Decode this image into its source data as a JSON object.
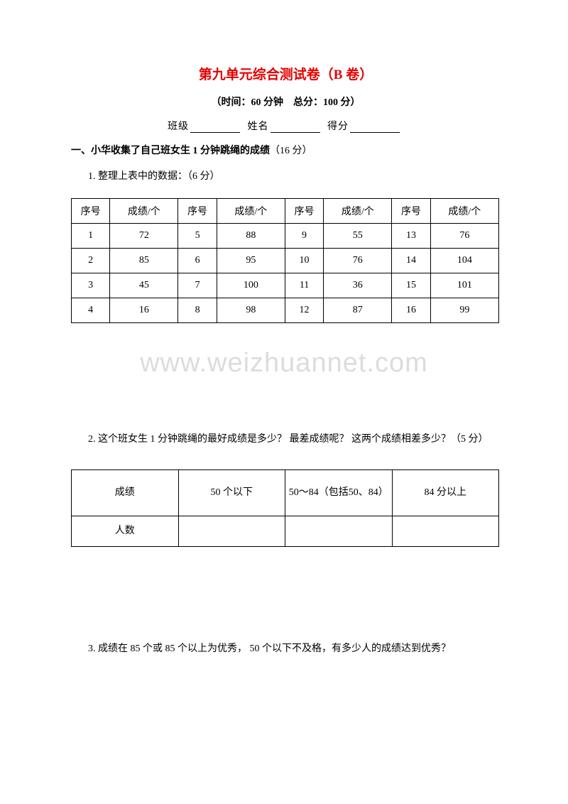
{
  "title": "第九单元综合测试卷（B 卷）",
  "subtitle": "（时间：60 分钟　总分：100 分）",
  "info": {
    "class_label": "班级",
    "name_label": "姓名",
    "score_label": "得分"
  },
  "section1": {
    "heading": "一、小华收集了自己班女生 1 分钟跳绳的成绩",
    "points": "（16 分）",
    "q1": "1. 整理上表中的数据：（6 分）"
  },
  "table1": {
    "headers": [
      "序号",
      "成绩/个",
      "序号",
      "成绩/个",
      "序号",
      "成绩/个",
      "序号",
      "成绩/个"
    ],
    "rows": [
      [
        "1",
        "72",
        "5",
        "88",
        "9",
        "55",
        "13",
        "76"
      ],
      [
        "2",
        "85",
        "6",
        "95",
        "10",
        "76",
        "14",
        "104"
      ],
      [
        "3",
        "45",
        "7",
        "100",
        "11",
        "36",
        "15",
        "101"
      ],
      [
        "4",
        "16",
        "8",
        "98",
        "12",
        "87",
        "16",
        "99"
      ]
    ],
    "col_widths": [
      "54px",
      "96px",
      "54px",
      "96px",
      "54px",
      "96px",
      "54px",
      "96px"
    ]
  },
  "watermark": "www.weizhuannet.com",
  "q2": "2. 这个班女生 1 分钟跳绳的最好成绩是多少？ 最差成绩呢？ 这两个成绩相差多少？（5 分）",
  "table2": {
    "row1": [
      "成绩",
      "50 个以下",
      "50～84（包括50、84）",
      "84 分以上"
    ],
    "row2_label": "人数"
  },
  "q3": "3. 成绩在 85 个或 85 个以上为优秀， 50 个以下不及格，有多少人的成绩达到优秀？"
}
